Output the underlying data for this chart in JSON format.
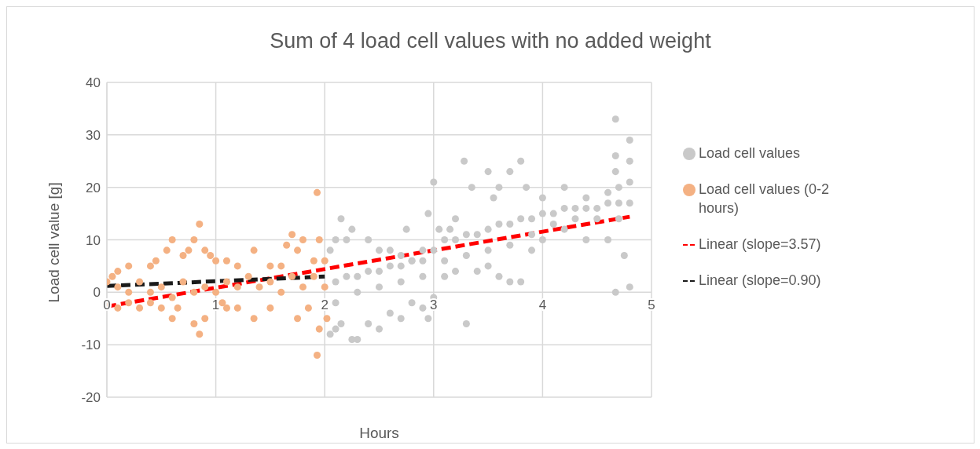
{
  "chart_data": {
    "type": "scatter",
    "title": "Sum of 4 load cell values with no added weight",
    "xlabel": "Hours",
    "ylabel": "Load cell value [g]",
    "xlim": [
      0,
      5
    ],
    "xticks": [
      0,
      1,
      2,
      3,
      4,
      5
    ],
    "ylim": [
      -20,
      40
    ],
    "yticks": [
      -20,
      -10,
      0,
      10,
      20,
      30,
      40
    ],
    "grid": true,
    "legend": "right",
    "series": [
      {
        "name": "Load cell values",
        "type": "scatter",
        "marker": "circle",
        "color": "#c9c9c9",
        "x": [
          2.05,
          2.1,
          2.15,
          2.2,
          2.25,
          2.4,
          2.5,
          2.6,
          2.7,
          2.75,
          2.8,
          2.9,
          2.95,
          3.0,
          3.05,
          3.15,
          3.2,
          3.28,
          3.35,
          3.5,
          3.55,
          3.6,
          3.7,
          3.8,
          3.85,
          4.0,
          4.2,
          4.4,
          4.6,
          4.67,
          4.7,
          4.8,
          2.05,
          2.1,
          2.15,
          2.25,
          2.3,
          2.4,
          2.5,
          2.6,
          2.7,
          2.8,
          2.9,
          2.95,
          3.0,
          3.1,
          3.2,
          3.3,
          3.4,
          3.5,
          3.6,
          3.7,
          3.8,
          3.9,
          4.0,
          4.2,
          4.4,
          4.6,
          4.67,
          4.75,
          4.8,
          2.1,
          2.2,
          2.3,
          2.4,
          2.5,
          2.6,
          2.7,
          2.8,
          2.9,
          3.0,
          3.1,
          3.2,
          3.3,
          3.4,
          3.5,
          3.6,
          3.7,
          3.8,
          3.9,
          4.0,
          4.1,
          4.2,
          4.3,
          4.4,
          4.5,
          4.6,
          4.7,
          4.8,
          2.1,
          2.3,
          2.5,
          2.7,
          2.9,
          3.1,
          3.3,
          3.5,
          3.7,
          3.9,
          4.1,
          4.3,
          4.5,
          4.7,
          4.67,
          4.67,
          4.8,
          4.8
        ],
        "values": [
          8,
          10,
          14,
          10,
          12,
          10,
          8,
          8,
          7,
          12,
          6,
          8,
          15,
          21,
          12,
          12,
          14,
          25,
          20,
          23,
          18,
          20,
          23,
          25,
          20,
          18,
          20,
          18,
          19,
          33,
          20,
          29,
          -8,
          -7,
          -6,
          -9,
          -9,
          -6,
          -7,
          -4,
          -5,
          -2,
          -3,
          -5,
          -1,
          3,
          4,
          -6,
          4,
          5,
          3,
          2,
          2,
          8,
          10,
          12,
          10,
          10,
          0,
          7,
          1,
          2,
          3,
          3,
          4,
          4,
          5,
          5,
          6,
          6,
          8,
          10,
          10,
          11,
          11,
          12,
          13,
          13,
          14,
          14,
          15,
          15,
          16,
          16,
          16,
          16,
          17,
          17,
          17,
          -2,
          0,
          1,
          2,
          3,
          6,
          7,
          8,
          9,
          11,
          13,
          14,
          14,
          14,
          23,
          26,
          25,
          21
        ]
      },
      {
        "name": "Load cell values (0-2 hours)",
        "marker": "circle",
        "color": "#f4b183",
        "x": [
          0,
          0.05,
          0.1,
          0.2,
          0.4,
          0.45,
          0.55,
          0.6,
          0.7,
          0.75,
          0.8,
          0.85,
          0.9,
          0.95,
          1.0,
          1.1,
          1.2,
          1.35,
          1.5,
          1.6,
          1.65,
          1.7,
          1.75,
          1.8,
          1.9,
          1.93,
          1.95,
          2.0,
          0,
          0.1,
          0.2,
          0.3,
          0.4,
          0.5,
          0.6,
          0.65,
          0.8,
          0.85,
          0.9,
          1.06,
          1.1,
          1.2,
          1.35,
          1.5,
          1.75,
          1.85,
          1.93,
          1.95,
          2.02,
          0.1,
          0.3,
          0.5,
          0.7,
          0.9,
          1.1,
          1.3,
          1.5,
          1.7,
          1.9,
          0.2,
          0.4,
          0.6,
          0.8,
          1.0,
          1.2,
          1.4,
          1.6,
          1.8,
          2.0
        ],
        "values": [
          2,
          3,
          4,
          5,
          5,
          6,
          8,
          10,
          7,
          8,
          10,
          13,
          8,
          7,
          6,
          6,
          5,
          8,
          5,
          5,
          9,
          11,
          8,
          10,
          6,
          19,
          10,
          6,
          -2,
          -3,
          -2,
          -3,
          -2,
          -3,
          -5,
          -3,
          -6,
          -8,
          -5,
          -2,
          -3,
          -3,
          -5,
          -3,
          -5,
          -3,
          -12,
          -7,
          -5,
          1,
          2,
          1,
          2,
          1,
          2,
          3,
          2,
          3,
          3,
          0,
          0,
          -1,
          0,
          0,
          1,
          1,
          0,
          1,
          1
        ]
      },
      {
        "name": "Linear (slope=3.57)",
        "type": "line",
        "marker": "none",
        "color": "#ff0000",
        "line_style": "dashed",
        "x": [
          0,
          4.8
        ],
        "values": [
          -2.7,
          14.4
        ]
      },
      {
        "name": "Linear (slope=0.90)",
        "type": "line",
        "marker": "none",
        "color": "#1a1a1a",
        "line_style": "dashed",
        "x": [
          0,
          2
        ],
        "values": [
          1.2,
          3.0
        ]
      }
    ]
  }
}
